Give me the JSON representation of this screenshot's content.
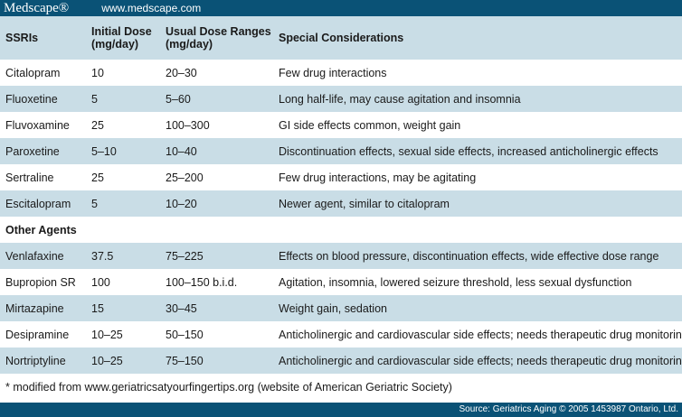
{
  "header_bar": {
    "brand": "Medscape®",
    "url": "www.medscape.com"
  },
  "table": {
    "headers": [
      "SSRIs",
      "Initial Dose (mg/day)",
      "Usual Dose Ranges (mg/day)",
      "Special Considerations"
    ],
    "header_lines": [
      [
        "SSRIs",
        ""
      ],
      [
        "Initial Dose",
        "(mg/day)"
      ],
      [
        "Usual Dose Ranges",
        "(mg/day)"
      ],
      [
        "Special Considerations",
        ""
      ]
    ],
    "ssri_rows": [
      {
        "drug": "Citalopram",
        "initial": "10",
        "range": "20–30",
        "notes": "Few drug interactions"
      },
      {
        "drug": "Fluoxetine",
        "initial": "5",
        "range": "5–60",
        "notes": "Long half-life, may cause agitation and insomnia"
      },
      {
        "drug": "Fluvoxamine",
        "initial": "25",
        "range": "100–300",
        "notes": "GI side effects common, weight gain"
      },
      {
        "drug": "Paroxetine",
        "initial": "5–10",
        "range": "10–40",
        "notes": "Discontinuation effects, sexual side effects, increased anticholinergic effects"
      },
      {
        "drug": "Sertraline",
        "initial": "25",
        "range": "25–200",
        "notes": "Few drug interactions, may be agitating"
      },
      {
        "drug": "Escitalopram",
        "initial": "5",
        "range": "10–20",
        "notes": "Newer agent, similar to citalopram"
      }
    ],
    "section_label": "Other Agents",
    "other_rows": [
      {
        "drug": "Venlafaxine",
        "initial": "37.5",
        "range": "75–225",
        "notes": "Effects on blood pressure, discontinuation effects, wide effective dose range"
      },
      {
        "drug": "Bupropion SR",
        "initial": "100",
        "range": "100–150 b.i.d.",
        "notes": "Agitation, insomnia, lowered seizure threshold, less sexual dysfunction"
      },
      {
        "drug": "Mirtazapine",
        "initial": "15",
        "range": "30–45",
        "notes": "Weight gain, sedation"
      },
      {
        "drug": "Desipramine",
        "initial": "10–25",
        "range": "50–150",
        "notes": "Anticholinergic and cardiovascular side effects; needs therapeutic drug monitoring"
      },
      {
        "drug": "Nortriptyline",
        "initial": "10–25",
        "range": "75–150",
        "notes": "Anticholinergic and cardiovascular side effects; needs therapeutic drug monitoring"
      }
    ]
  },
  "footnote": "* modified from www.geriatricsatyourfingertips.org (website of American Geriatric Society)",
  "source": "Source: Geriatrics Aging © 2005 1453987 Ontario, Ltd.",
  "colors": {
    "brand_bar": "#0a5276",
    "row_alt": "#c9dde6",
    "row_base": "#ffffff"
  }
}
